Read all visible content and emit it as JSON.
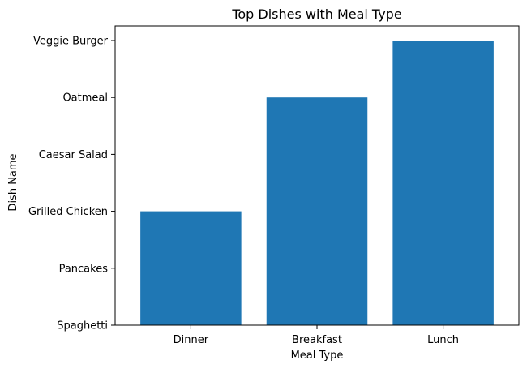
{
  "chart_data": {
    "type": "bar",
    "title": "Top Dishes with Meal Type",
    "xlabel": "Meal Type",
    "ylabel": "Dish Name",
    "categories": [
      "Dinner",
      "Breakfast",
      "Lunch"
    ],
    "y_categories": [
      "Spaghetti",
      "Pancakes",
      "Grilled Chicken",
      "Caesar Salad",
      "Oatmeal",
      "Veggie Burger"
    ],
    "values": [
      "Grilled Chicken",
      "Oatmeal",
      "Veggie Burger"
    ],
    "value_indices": [
      2,
      4,
      5
    ],
    "ylim": [
      0,
      5
    ],
    "grid": false,
    "legend": "none",
    "bar_color": "#1f77b4"
  }
}
